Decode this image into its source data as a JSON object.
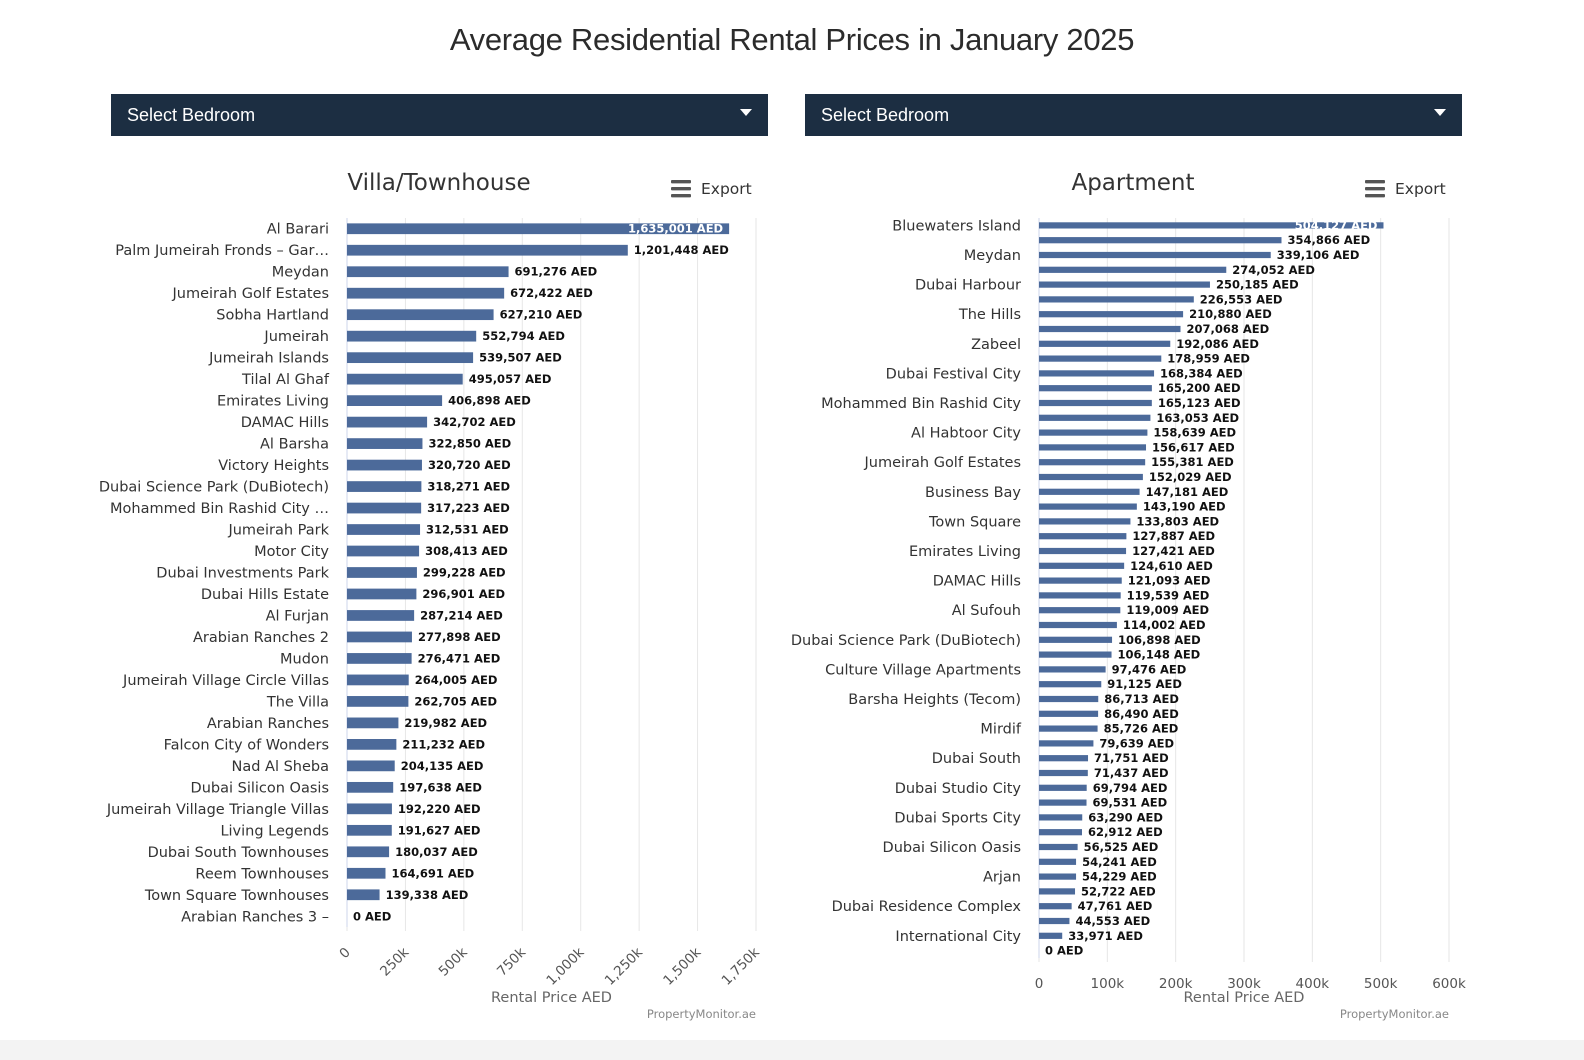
{
  "page": {
    "title": "Average Residential Rental Prices in January 2025",
    "dropdowns": [
      {
        "label": "Select Bedroom"
      },
      {
        "label": "Select Bedroom"
      }
    ],
    "export_label": "Export",
    "credit": "PropertyMonitor.ae"
  },
  "colors": {
    "bar": "#4c6a9a",
    "grid": "#e6e6e6",
    "header": "#1c2e42"
  },
  "chart_data": [
    {
      "type": "bar",
      "orientation": "horizontal",
      "title": "Villa/Townhouse",
      "xlabel": "Rental Price AED",
      "xlim": [
        0,
        1750000
      ],
      "xticks": [
        0,
        250000,
        500000,
        750000,
        1000000,
        1250000,
        1500000,
        1750000
      ],
      "xtick_labels": [
        "0",
        "250k",
        "500k",
        "750k",
        "1,000k",
        "1,250k",
        "1,500k",
        "1,750k"
      ],
      "categories": [
        "Al Barari",
        "Palm Jumeirah Fronds – Gar…",
        "Meydan",
        "Jumeirah Golf Estates",
        "Sobha Hartland",
        "Jumeirah",
        "Jumeirah Islands",
        "Tilal Al Ghaf",
        "Emirates Living",
        "DAMAC Hills",
        "Al Barsha",
        "Victory Heights",
        "Dubai Science Park (DuBiotech)",
        "Mohammed Bin Rashid City …",
        "Jumeirah Park",
        "Motor City",
        "Dubai Investments Park",
        "Dubai Hills Estate",
        "Al Furjan",
        "Arabian Ranches 2",
        "Mudon",
        "Jumeirah Village Circle Villas",
        "The Villa",
        "Arabian Ranches",
        "Falcon City of Wonders",
        "Nad Al Sheba",
        "Dubai Silicon Oasis",
        "Jumeirah Village Triangle Villas",
        "Living Legends",
        "Dubai South Townhouses",
        "Reem Townhouses",
        "Town Square Townhouses",
        "Arabian Ranches 3 –"
      ],
      "values": [
        1635001,
        1201448,
        691276,
        672422,
        627210,
        552794,
        539507,
        495057,
        406898,
        342702,
        322850,
        320720,
        318271,
        317223,
        312531,
        308413,
        299228,
        296901,
        287214,
        277898,
        276471,
        264005,
        262705,
        219982,
        211232,
        204135,
        197638,
        192220,
        191627,
        180037,
        164691,
        139338,
        0
      ],
      "value_labels": [
        "1,635,001 AED",
        "1,201,448 AED",
        "691,276 AED",
        "672,422 AED",
        "627,210 AED",
        "552,794 AED",
        "539,507 AED",
        "495,057 AED",
        "406,898 AED",
        "342,702 AED",
        "322,850 AED",
        "320,720 AED",
        "318,271 AED",
        "317,223 AED",
        "312,531 AED",
        "308,413 AED",
        "299,228 AED",
        "296,901 AED",
        "287,214 AED",
        "277,898 AED",
        "276,471 AED",
        "264,005 AED",
        "262,705 AED",
        "219,982 AED",
        "211,232 AED",
        "204,135 AED",
        "197,638 AED",
        "192,220 AED",
        "191,627 AED",
        "180,037 AED",
        "164,691 AED",
        "139,338 AED",
        "0 AED"
      ]
    },
    {
      "type": "bar",
      "orientation": "horizontal",
      "title": "Apartment",
      "xlabel": "Rental Price AED",
      "xlim": [
        0,
        600000
      ],
      "xticks": [
        0,
        100000,
        200000,
        300000,
        400000,
        500000,
        600000
      ],
      "xtick_labels": [
        "0",
        "100k",
        "200k",
        "300k",
        "400k",
        "500k",
        "600k"
      ],
      "categories": [
        "Bluewaters Island",
        "",
        "Meydan",
        "",
        "Dubai Harbour",
        "",
        "The Hills",
        "",
        "Zabeel",
        "",
        "Dubai Festival City",
        "",
        "Mohammed Bin Rashid City",
        "",
        "Al Habtoor City",
        "",
        "Jumeirah Golf Estates",
        "",
        "Business Bay",
        "",
        "Town Square",
        "",
        "Emirates Living",
        "",
        "DAMAC Hills",
        "",
        "Al Sufouh",
        "",
        "Dubai Science Park (DuBiotech)",
        "",
        "Culture Village Apartments",
        "",
        "Barsha Heights (Tecom)",
        "",
        "Mirdif",
        "",
        "Dubai South",
        "",
        "Dubai Studio City",
        "",
        "Dubai Sports City",
        "",
        "Dubai Silicon Oasis",
        "",
        "Arjan",
        "",
        "Dubai Residence Complex",
        "",
        "International City",
        ""
      ],
      "values": [
        504127,
        354866,
        339106,
        274052,
        250185,
        226553,
        210880,
        207068,
        192086,
        178959,
        168384,
        165200,
        165123,
        163053,
        158639,
        156617,
        155381,
        152029,
        147181,
        143190,
        133803,
        127887,
        127421,
        124610,
        121093,
        119539,
        119009,
        114002,
        106898,
        106148,
        97476,
        91125,
        86713,
        86490,
        85726,
        79639,
        71751,
        71437,
        69794,
        69531,
        63290,
        62912,
        56525,
        54241,
        54229,
        52722,
        47761,
        44553,
        33971,
        0
      ],
      "value_labels": [
        "504,127 AED",
        "354,866 AED",
        "339,106 AED",
        "274,052 AED",
        "250,185 AED",
        "226,553 AED",
        "210,880 AED",
        "207,068 AED",
        "192,086 AED",
        "178,959 AED",
        "168,384 AED",
        "165,200 AED",
        "165,123 AED",
        "163,053 AED",
        "158,639 AED",
        "156,617 AED",
        "155,381 AED",
        "152,029 AED",
        "147,181 AED",
        "143,190 AED",
        "133,803 AED",
        "127,887 AED",
        "127,421 AED",
        "124,610 AED",
        "121,093 AED",
        "119,539 AED",
        "119,009 AED",
        "114,002 AED",
        "106,898 AED",
        "106,148 AED",
        "97,476 AED",
        "91,125 AED",
        "86,713 AED",
        "86,490 AED",
        "85,726 AED",
        "79,639 AED",
        "71,751 AED",
        "71,437 AED",
        "69,794 AED",
        "69,531 AED",
        "63,290 AED",
        "62,912 AED",
        "56,525 AED",
        "54,241 AED",
        "54,229 AED",
        "52,722 AED",
        "47,761 AED",
        "44,553 AED",
        "33,971 AED",
        "0 AED"
      ]
    }
  ]
}
